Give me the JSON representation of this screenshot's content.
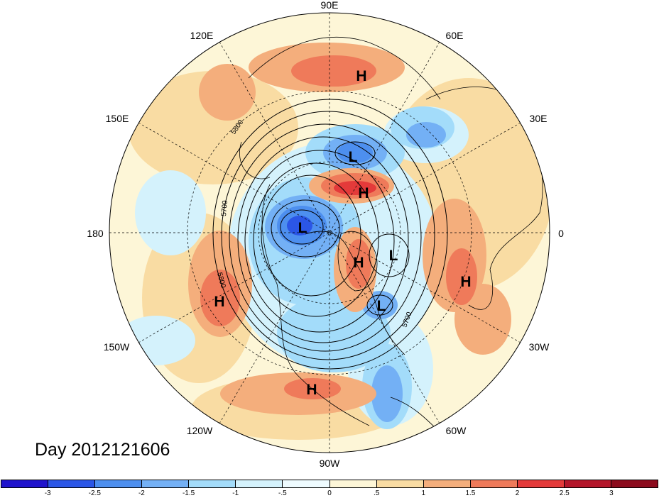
{
  "title_text": "Day 2012121606",
  "longitude_labels": {
    "lon_90e": "90E",
    "lon_60e": "60E",
    "lon_30e": "30E",
    "lon_0": "0",
    "lon_30w": "30W",
    "lon_60w": "60W",
    "lon_90w": "90W",
    "lon_120w": "120W",
    "lon_150w": "150W",
    "lon_180": "180",
    "lon_150e": "150E",
    "lon_120e": "120E"
  },
  "pressure_centers": [
    "H",
    "L",
    "H",
    "L",
    "H",
    "L",
    "H",
    "L",
    "H",
    "H"
  ],
  "contour_labels": [
    "5800",
    "5700",
    "5800",
    "5700"
  ],
  "colorbar": {
    "ticks": [
      "-3",
      "-2.5",
      "-2",
      "-1.5",
      "-1",
      "-.5",
      "0",
      ".5",
      "1",
      "1.5",
      "2",
      "2.5",
      "3"
    ],
    "colors": [
      "#1f13cc",
      "#2b56e6",
      "#4d8fef",
      "#73b0f5",
      "#a3dcfa",
      "#d4f2fc",
      "#eefbff",
      "#fdf6d7",
      "#f9dca3",
      "#f4ae7c",
      "#ef7a5a",
      "#e43a3a",
      "#b4162a",
      "#8c0b1d"
    ]
  },
  "map_colors": {
    "ocean_neutral": "#fdf6d7",
    "warm_light": "#f9dca3",
    "warm": "#f4ae7c",
    "warm_strong": "#ef7a5a",
    "hot": "#e43a3a",
    "cool_light": "#d4f2fc",
    "cool": "#a3dcfa",
    "cool_mid": "#73b0f5",
    "cold": "#4d8fef",
    "very_cold": "#2b56e6",
    "coldest": "#1f13cc"
  }
}
